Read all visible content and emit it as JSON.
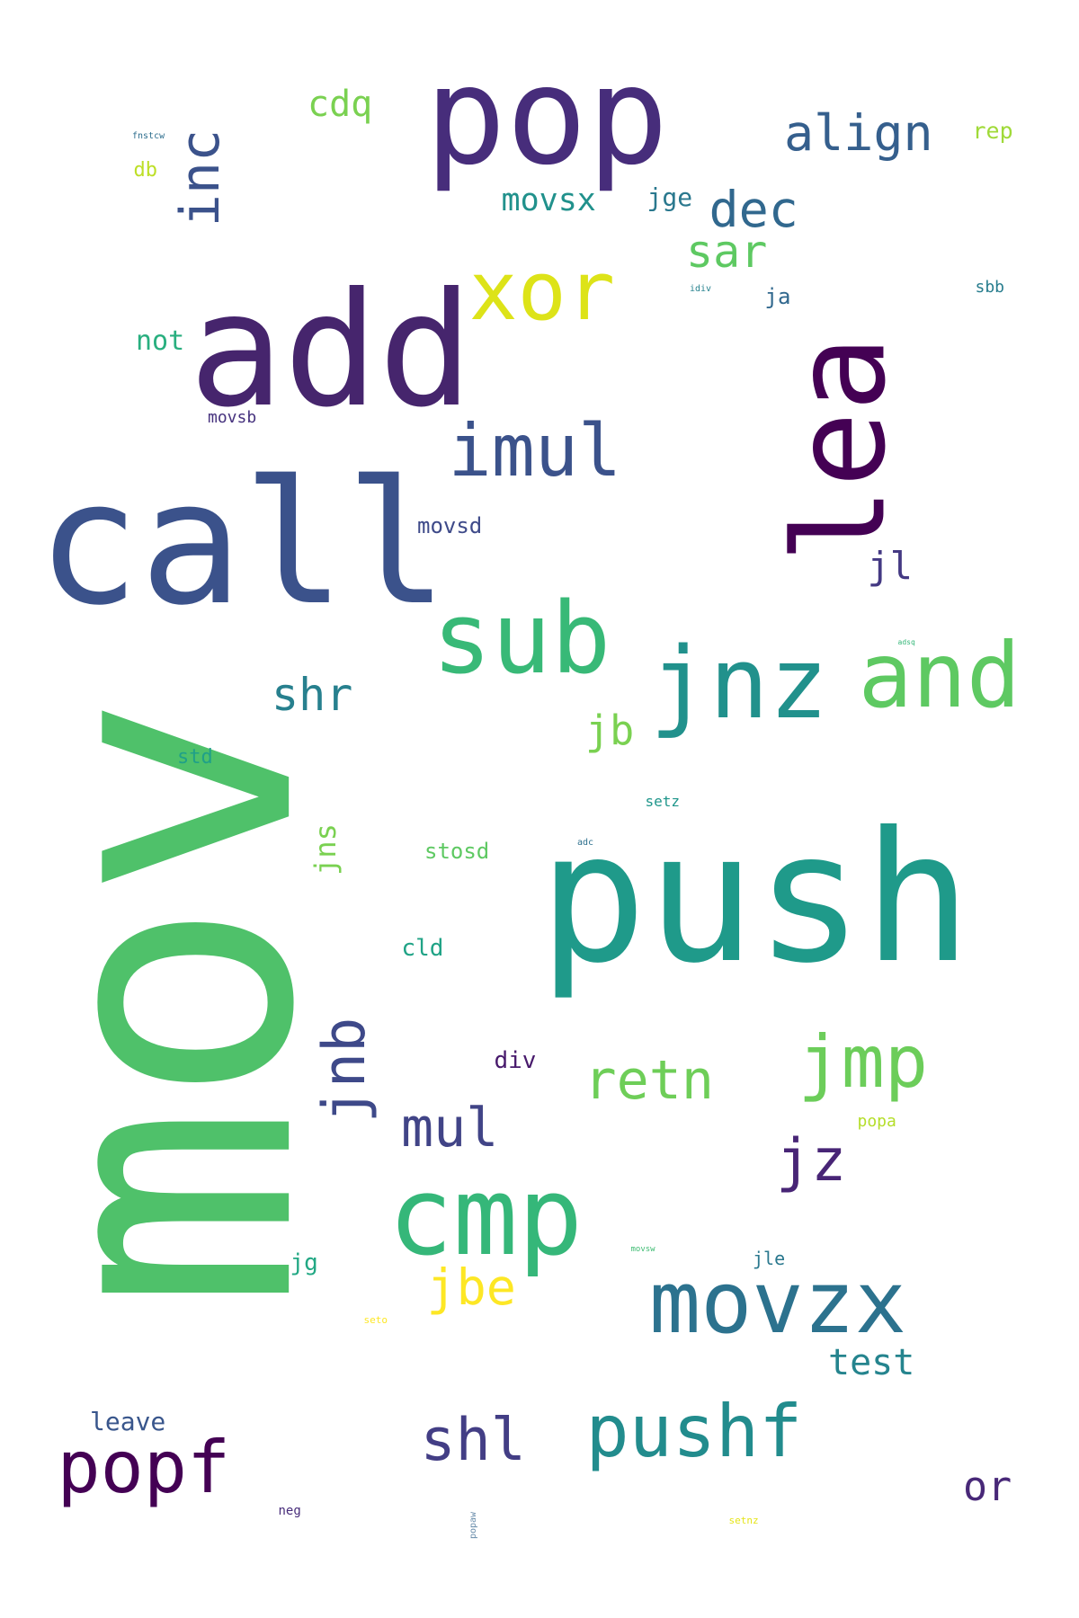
{
  "words": [
    {
      "text": "mov",
      "color": "#4fc16a",
      "rotated": true
    },
    {
      "text": "push",
      "color": "#1f9a8a",
      "rotated": false
    },
    {
      "text": "call",
      "color": "#3b528b",
      "rotated": false
    },
    {
      "text": "add",
      "color": "#46256d",
      "rotated": false
    },
    {
      "text": "pop",
      "color": "#472d7b",
      "rotated": false
    },
    {
      "text": "lea",
      "color": "#440154",
      "rotated": true
    },
    {
      "text": "cmp",
      "color": "#35b779",
      "rotated": false
    },
    {
      "text": "sub",
      "color": "#38b977",
      "rotated": false
    },
    {
      "text": "jnz",
      "color": "#21918c",
      "rotated": false
    },
    {
      "text": "and",
      "color": "#5ec962",
      "rotated": false
    },
    {
      "text": "movzx",
      "color": "#2c728e",
      "rotated": false
    },
    {
      "text": "xor",
      "color": "#dde318",
      "rotated": false
    },
    {
      "text": "imul",
      "color": "#3b528b",
      "rotated": false
    },
    {
      "text": "jmp",
      "color": "#6ccd5a",
      "rotated": false
    },
    {
      "text": "pushf",
      "color": "#228c8d",
      "rotated": false
    },
    {
      "text": "popf",
      "color": "#440154",
      "rotated": false
    },
    {
      "text": "jnb",
      "color": "#3e4989",
      "rotated": true
    },
    {
      "text": "inc",
      "color": "#3b528b",
      "rotated": true
    },
    {
      "text": "jz",
      "color": "#482576",
      "rotated": false
    },
    {
      "text": "retn",
      "color": "#6ece58",
      "rotated": false
    },
    {
      "text": "shl",
      "color": "#433e85",
      "rotated": false
    },
    {
      "text": "align",
      "color": "#355f8d",
      "rotated": false
    },
    {
      "text": "shr",
      "color": "#27808e",
      "rotated": false
    },
    {
      "text": "mul",
      "color": "#414487",
      "rotated": false
    },
    {
      "text": "jbe",
      "color": "#fde725",
      "rotated": false
    },
    {
      "text": "dec",
      "color": "#31688e",
      "rotated": false
    },
    {
      "text": "sar",
      "color": "#5ec962",
      "rotated": false
    },
    {
      "text": "test",
      "color": "#25848e",
      "rotated": false
    },
    {
      "text": "or",
      "color": "#482878",
      "rotated": false
    },
    {
      "text": "jb",
      "color": "#7ad151",
      "rotated": false
    },
    {
      "text": "cdq",
      "color": "#7ad151",
      "rotated": false
    },
    {
      "text": "jl",
      "color": "#443983",
      "rotated": false
    },
    {
      "text": "movsx",
      "color": "#21918c",
      "rotated": false
    },
    {
      "text": "not",
      "color": "#29af7f",
      "rotated": false
    },
    {
      "text": "leave",
      "color": "#39568c",
      "rotated": false
    },
    {
      "text": "jns",
      "color": "#7ad151",
      "rotated": true
    },
    {
      "text": "jge",
      "color": "#2a788e",
      "rotated": false
    },
    {
      "text": "movsd",
      "color": "#3e4a89",
      "rotated": false
    },
    {
      "text": "div",
      "color": "#481a6c",
      "rotated": false
    },
    {
      "text": "stosd",
      "color": "#5ec962",
      "rotated": false
    },
    {
      "text": "cld",
      "color": "#20a386",
      "rotated": false
    },
    {
      "text": "std",
      "color": "#1fa088",
      "rotated": false
    },
    {
      "text": "jg",
      "color": "#22a884",
      "rotated": false
    },
    {
      "text": "ja",
      "color": "#31688e",
      "rotated": false
    },
    {
      "text": "rep",
      "color": "#a0da39",
      "rotated": false
    },
    {
      "text": "jle",
      "color": "#2a788e",
      "rotated": false
    },
    {
      "text": "db",
      "color": "#bddf26",
      "rotated": false
    },
    {
      "text": "movsb",
      "color": "#46327e",
      "rotated": false
    },
    {
      "text": "sbb",
      "color": "#287d8e",
      "rotated": false
    },
    {
      "text": "setz",
      "color": "#1f968b",
      "rotated": false
    },
    {
      "text": "popa",
      "color": "#b5de2b",
      "rotated": false
    },
    {
      "text": "neg",
      "color": "#472c7a",
      "rotated": false
    },
    {
      "text": "fnstcw",
      "color": "#2e6e8e",
      "rotated": false
    },
    {
      "text": "idiv",
      "color": "#26828e",
      "rotated": false
    },
    {
      "text": "adc",
      "color": "#2d708e",
      "rotated": false
    },
    {
      "text": "movsw",
      "color": "#3fbc73",
      "rotated": false
    },
    {
      "text": "adsq",
      "color": "#35b779",
      "rotated": false
    },
    {
      "text": "seto",
      "color": "#fde725",
      "rotated": false
    },
    {
      "text": "setnz",
      "color": "#e5e419",
      "rotated": false
    },
    {
      "text": "popaw",
      "color": "#6a8dab",
      "rotated": true
    }
  ]
}
